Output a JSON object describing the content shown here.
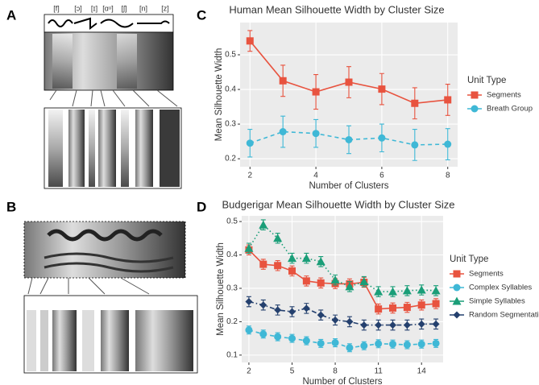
{
  "panel_labels": [
    "A",
    "B",
    "C",
    "D"
  ],
  "spectrogram_labels": [
    "[f]",
    "[ɔ]",
    "[ɪ]",
    "[ɑᵘ]",
    "[ʃ]",
    "[n]",
    "[z]"
  ],
  "chart_data": [
    {
      "type": "line",
      "title": "Human Mean Silhouette Width by Cluster Size",
      "x_label": "Number of Clusters",
      "y_label": "Mean Silhouette Width",
      "legend_title": "Unit Type",
      "x": [
        2,
        3,
        4,
        5,
        6,
        7,
        8
      ],
      "xlim": [
        1.7,
        8.3
      ],
      "xticks": [
        2,
        4,
        6,
        8
      ],
      "ylim": [
        0.177,
        0.593
      ],
      "yticks": [
        0.2,
        0.3,
        0.4,
        0.5
      ],
      "grid": true,
      "series": [
        {
          "name": "Segments",
          "color": "#e8533f",
          "marker": "square",
          "dash": "solid",
          "values": [
            0.54,
            0.425,
            0.393,
            0.421,
            0.401,
            0.36,
            0.37
          ],
          "errors": [
            0.03,
            0.045,
            0.05,
            0.045,
            0.045,
            0.045,
            0.045
          ]
        },
        {
          "name": "Breath Group",
          "color": "#3fb8d6",
          "marker": "circle",
          "dash": "dashed",
          "values": [
            0.245,
            0.278,
            0.273,
            0.255,
            0.26,
            0.24,
            0.242
          ],
          "errors": [
            0.04,
            0.045,
            0.04,
            0.04,
            0.04,
            0.045,
            0.045
          ]
        }
      ]
    },
    {
      "type": "line",
      "title": "Budgerigar Mean Silhouette Width by Cluster Size",
      "x_label": "Number of Clusters",
      "y_label": "Mean Silhouette Width",
      "legend_title": "Unit Type",
      "x": [
        2,
        3,
        4,
        5,
        6,
        7,
        8,
        9,
        10,
        11,
        12,
        13,
        14,
        15
      ],
      "xlim": [
        1.5,
        15.5
      ],
      "xticks": [
        2,
        5,
        8,
        11,
        14
      ],
      "ylim": [
        0.078,
        0.517
      ],
      "yticks": [
        0.1,
        0.2,
        0.3,
        0.4,
        0.5
      ],
      "grid": true,
      "series": [
        {
          "name": "Segments",
          "color": "#e8533f",
          "marker": "square",
          "dash": "solid",
          "values": [
            0.415,
            0.372,
            0.368,
            0.352,
            0.322,
            0.316,
            0.314,
            0.313,
            0.318,
            0.238,
            0.241,
            0.243,
            0.25,
            0.254
          ],
          "errors": [
            0.015,
            0.015,
            0.015,
            0.015,
            0.015,
            0.015,
            0.015,
            0.015,
            0.015,
            0.015,
            0.015,
            0.015,
            0.015,
            0.015
          ]
        },
        {
          "name": "Complex Syllables",
          "color": "#3fb8d6",
          "marker": "circle",
          "dash": "dashed",
          "values": [
            0.175,
            0.163,
            0.155,
            0.15,
            0.143,
            0.135,
            0.137,
            0.122,
            0.128,
            0.134,
            0.133,
            0.131,
            0.133,
            0.135
          ],
          "errors": [
            0.012,
            0.012,
            0.012,
            0.012,
            0.012,
            0.012,
            0.012,
            0.012,
            0.012,
            0.012,
            0.012,
            0.012,
            0.012,
            0.012
          ]
        },
        {
          "name": "Simple Syllables",
          "color": "#1a9e78",
          "marker": "triangle",
          "dash": "dotted",
          "values": [
            0.42,
            0.49,
            0.45,
            0.39,
            0.39,
            0.38,
            0.325,
            0.305,
            0.32,
            0.29,
            0.29,
            0.293,
            0.295,
            0.293
          ],
          "errors": [
            0.015,
            0.015,
            0.015,
            0.015,
            0.015,
            0.015,
            0.015,
            0.015,
            0.015,
            0.015,
            0.015,
            0.015,
            0.015,
            0.015
          ]
        },
        {
          "name": "Random Segmentation",
          "color": "#24406e",
          "marker": "diamond",
          "dash": "dashdot",
          "values": [
            0.26,
            0.25,
            0.235,
            0.23,
            0.24,
            0.22,
            0.205,
            0.2,
            0.19,
            0.19,
            0.19,
            0.19,
            0.193,
            0.193
          ],
          "errors": [
            0.015,
            0.015,
            0.015,
            0.015,
            0.015,
            0.015,
            0.015,
            0.015,
            0.015,
            0.015,
            0.015,
            0.015,
            0.015,
            0.015
          ]
        }
      ]
    }
  ]
}
